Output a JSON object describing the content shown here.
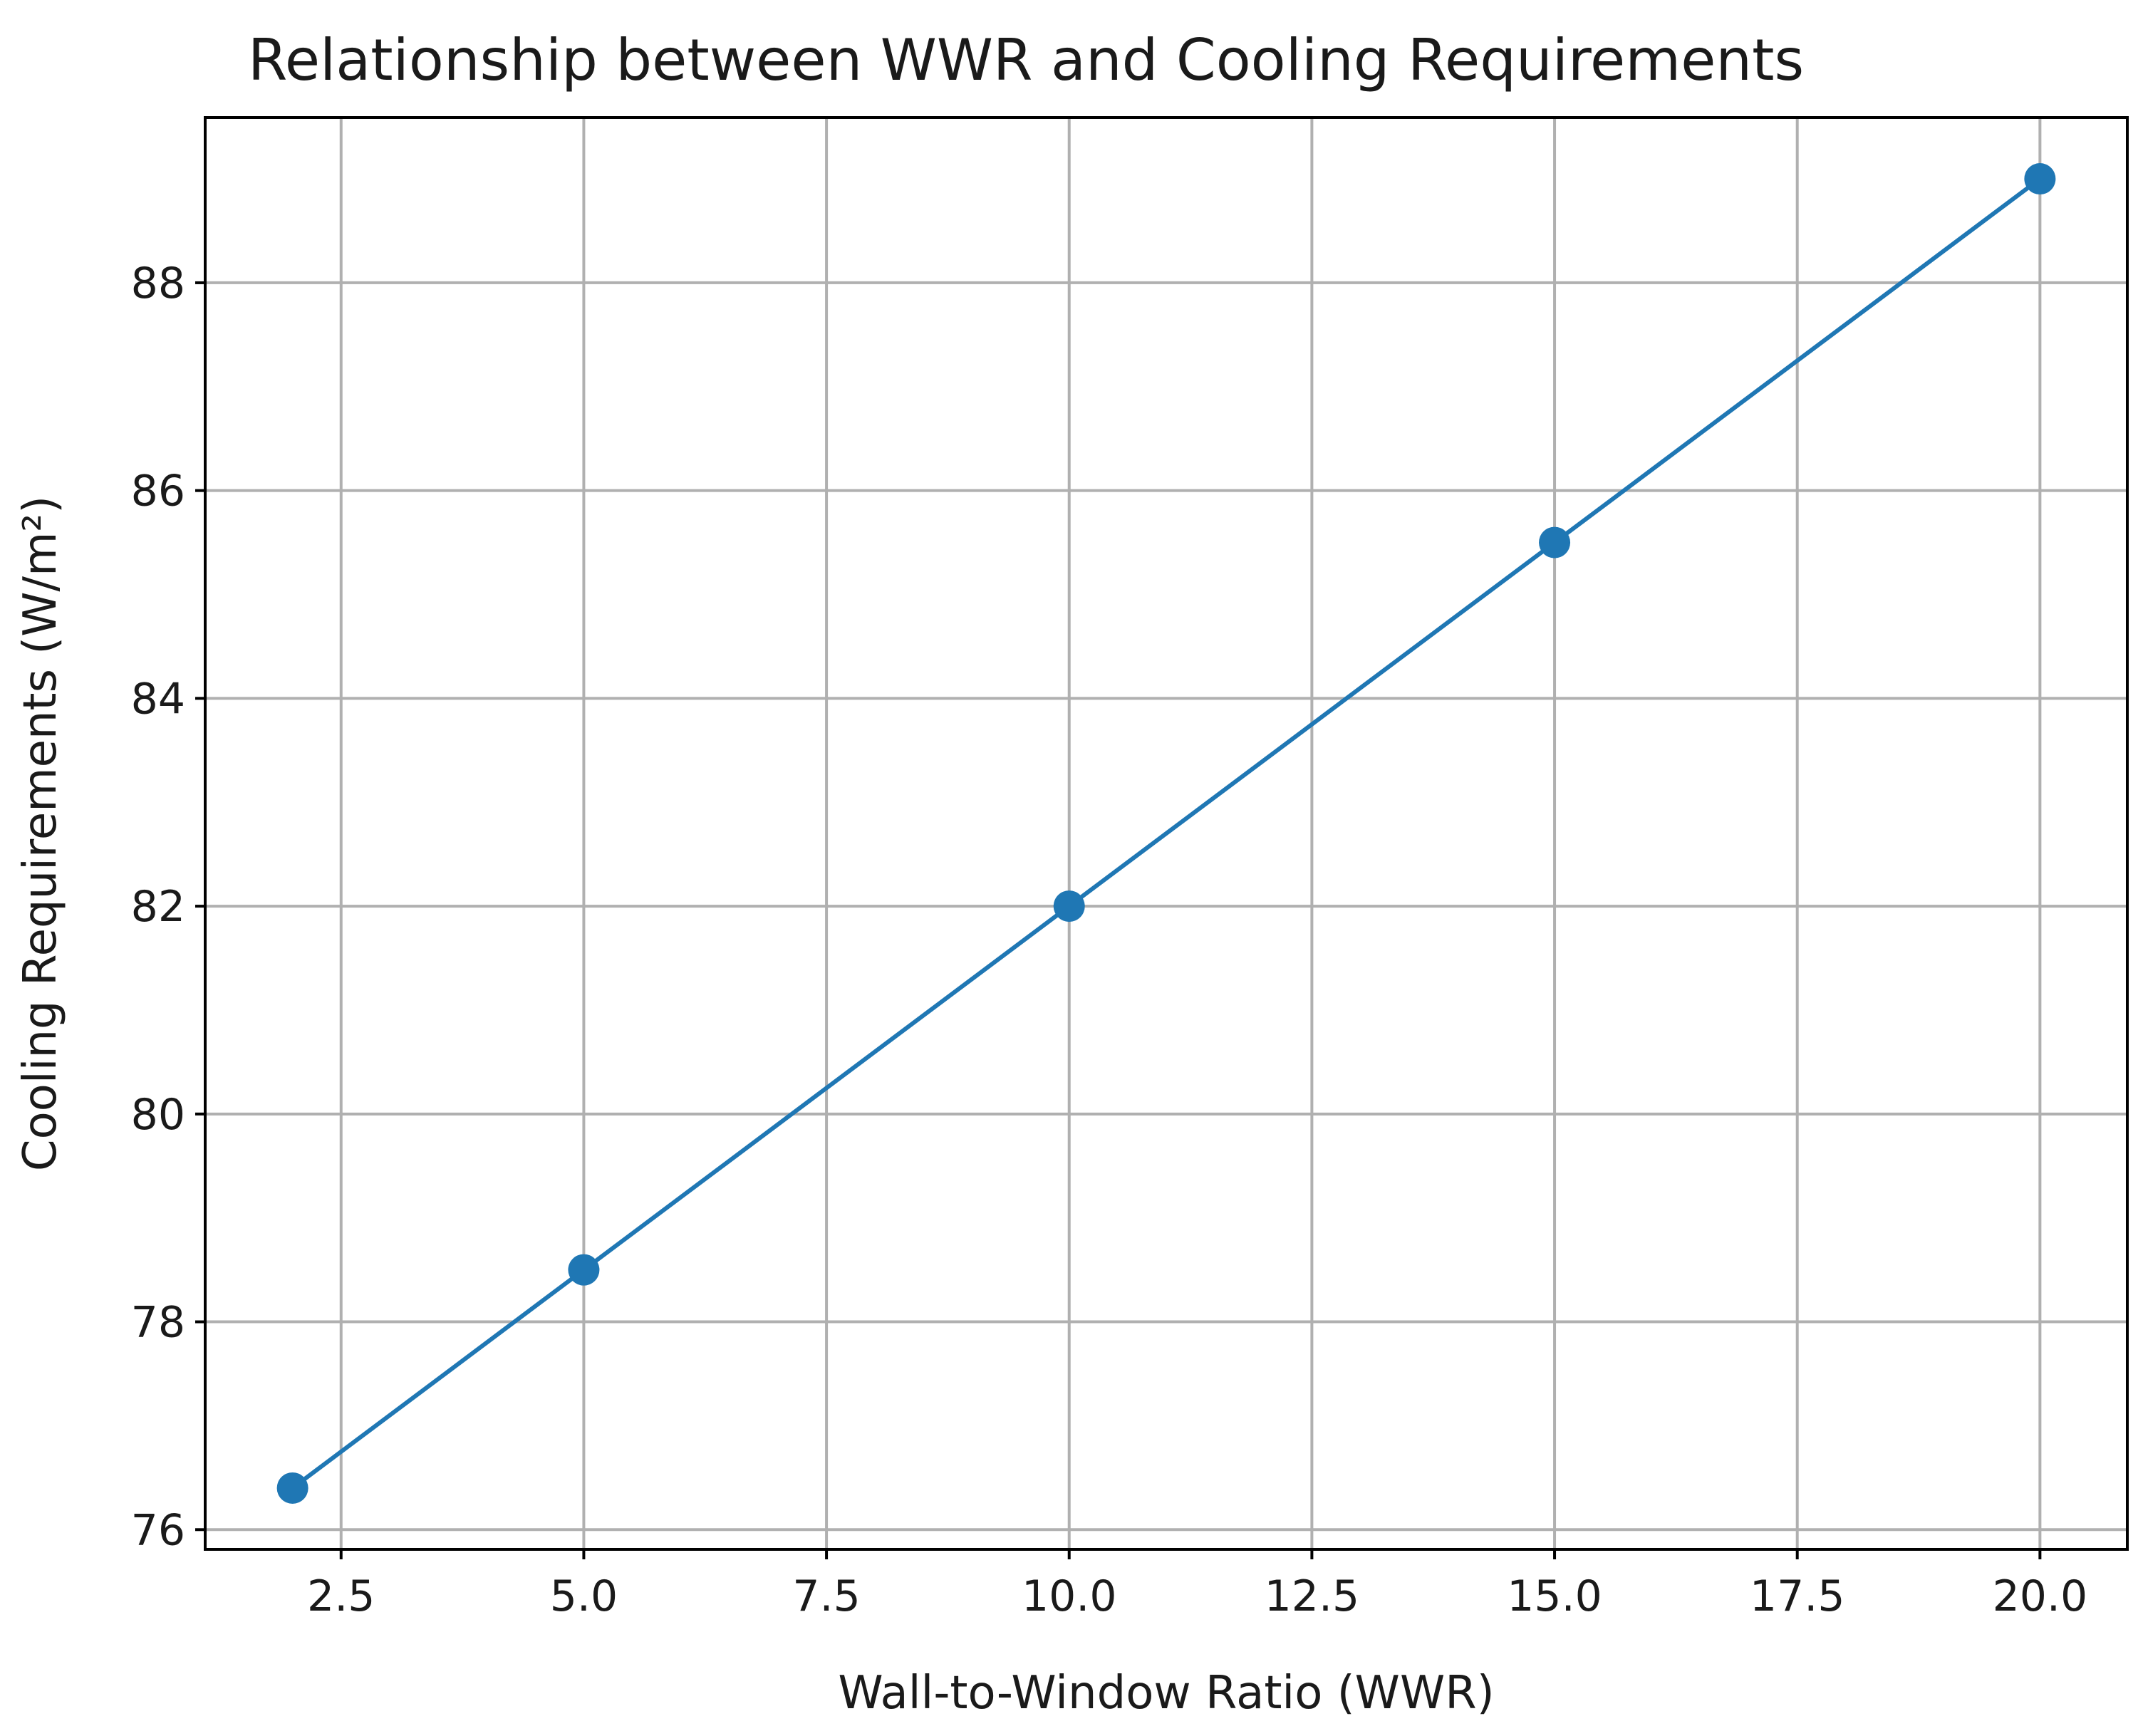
{
  "chart_data": {
    "type": "line",
    "title": "Relationship between WWR and Cooling Requirements",
    "xlabel": "Wall-to-Window Ratio (WWR)",
    "ylabel": "Cooling Requirements (W/m²)",
    "x": [
      2,
      5,
      10,
      15,
      20
    ],
    "series": [
      {
        "values": [
          76.4,
          78.5,
          82.0,
          85.5,
          89.0
        ],
        "color": "#1f77b4",
        "marker": "circle"
      }
    ],
    "xlim": [
      1.1,
      20.9
    ],
    "ylim": [
      75.81,
      89.59
    ],
    "xticks": [
      2.5,
      5.0,
      7.5,
      10.0,
      12.5,
      15.0,
      17.5,
      20.0
    ],
    "xtick_labels": [
      "2.5",
      "5.0",
      "7.5",
      "10.0",
      "12.5",
      "15.0",
      "17.5",
      "20.0"
    ],
    "yticks": [
      76,
      78,
      80,
      82,
      84,
      86,
      88
    ],
    "ytick_labels": [
      "76",
      "78",
      "80",
      "82",
      "84",
      "86",
      "88"
    ],
    "grid": true,
    "legend": "none"
  }
}
